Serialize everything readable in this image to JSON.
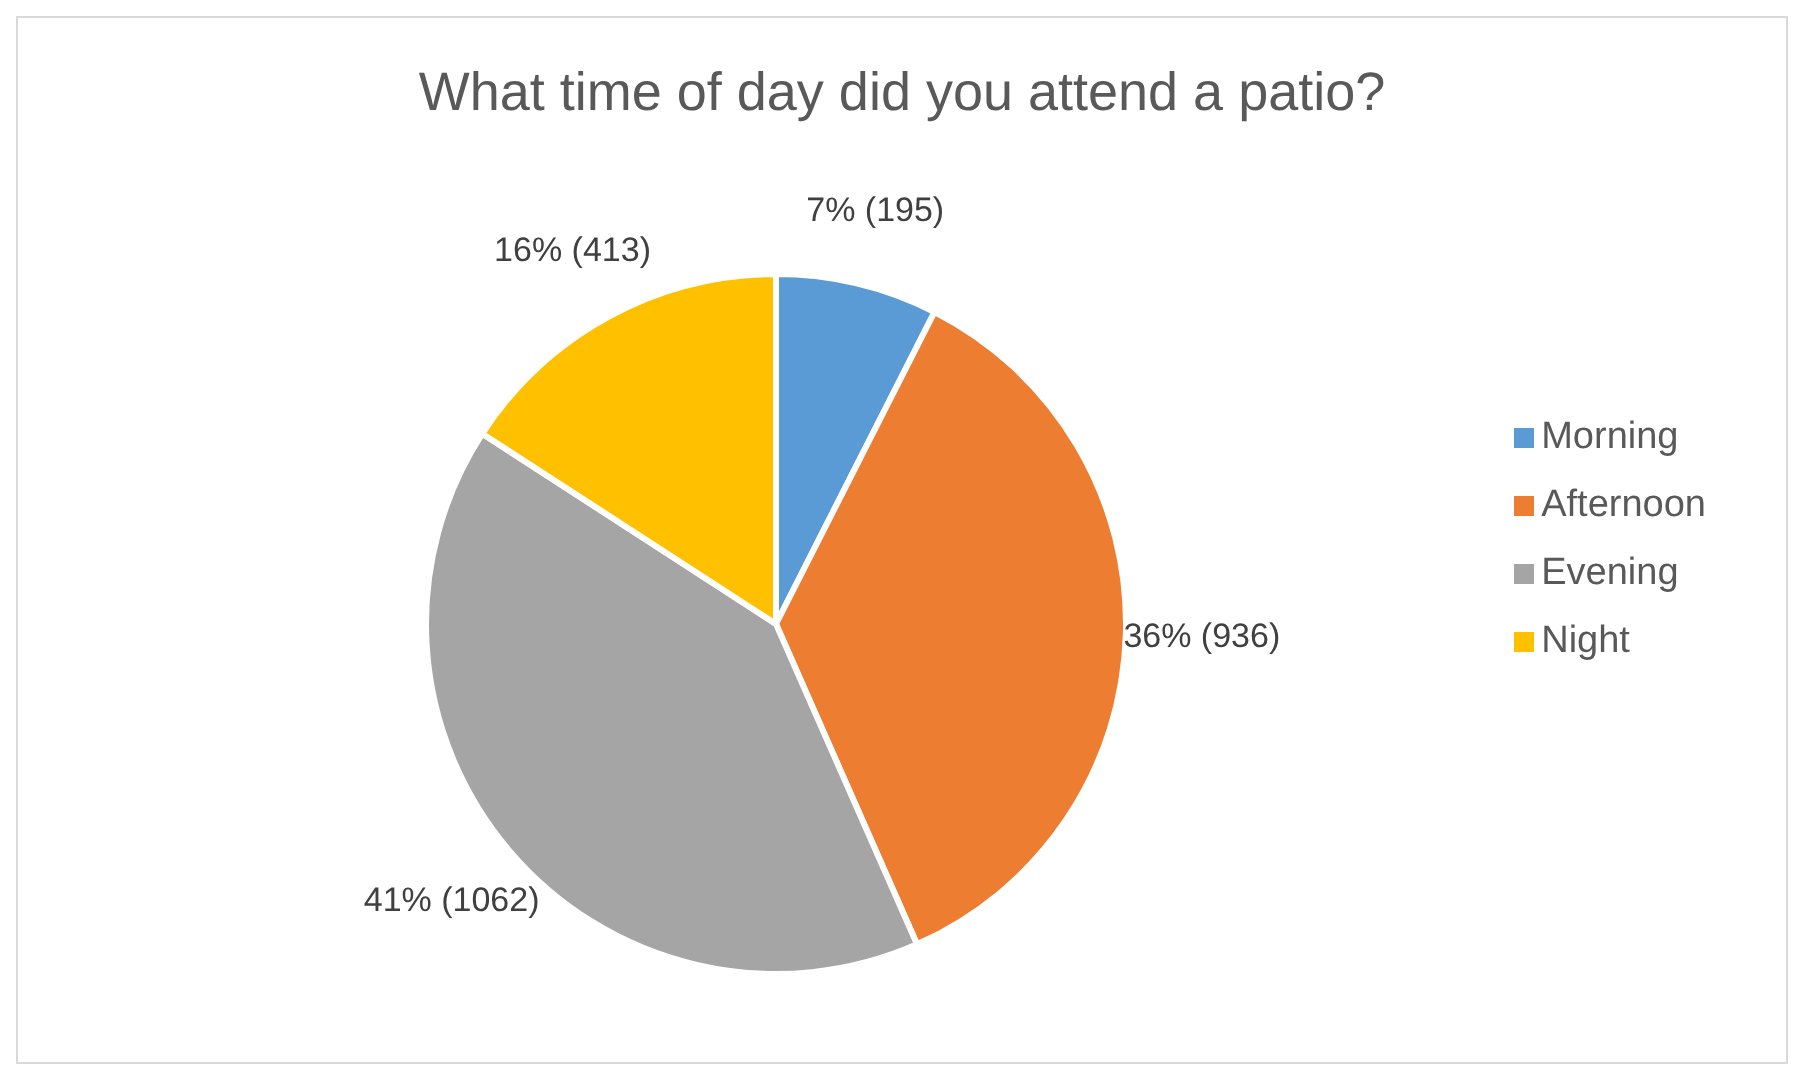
{
  "chart_data": {
    "type": "pie",
    "title": "What time of day did you attend a patio?",
    "categories": [
      "Morning",
      "Afternoon",
      "Evening",
      "Night"
    ],
    "values": [
      195,
      936,
      1062,
      413
    ],
    "colors": [
      "#5b9bd5",
      "#ed7d31",
      "#a5a5a5",
      "#ffc000"
    ],
    "value_labels": [
      "7% (195)",
      "36% (936)",
      "41% (1062)",
      "16% (413)"
    ],
    "legend": "right"
  }
}
